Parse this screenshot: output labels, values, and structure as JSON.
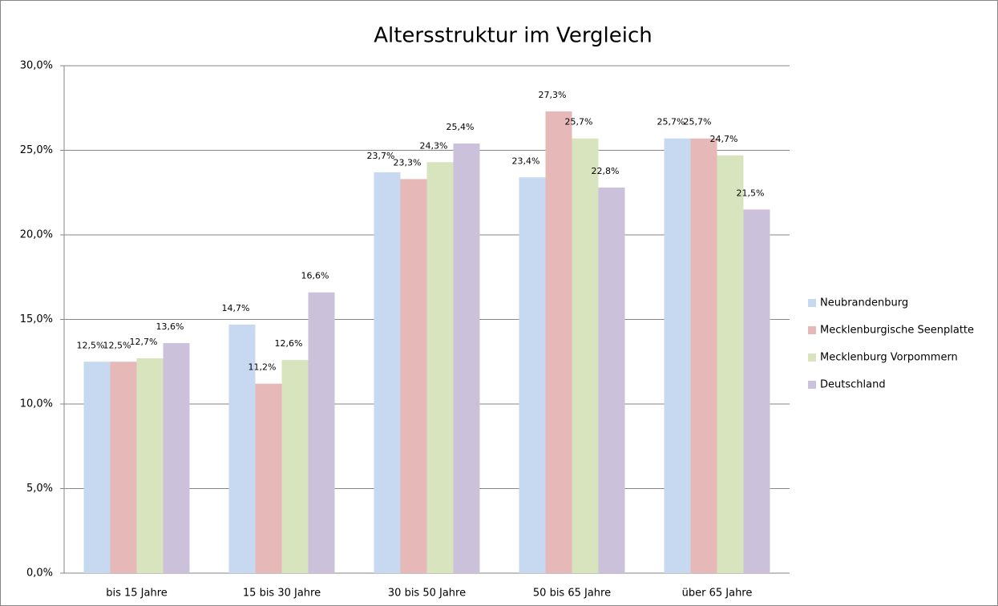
{
  "chart_data": {
    "type": "bar",
    "title": "Altersstruktur im Vergleich",
    "categories": [
      "bis 15 Jahre",
      "15 bis 30 Jahre",
      "30 bis 50 Jahre",
      "50 bis 65 Jahre",
      "über 65 Jahre"
    ],
    "series": [
      {
        "name": "Neubrandenburg",
        "color": "#c6d9f1",
        "values": [
          12.5,
          14.7,
          23.7,
          23.4,
          25.7
        ],
        "value_labels": [
          "12,5%",
          "14,7%",
          "23,7%",
          "23,4%",
          "25,7%"
        ]
      },
      {
        "name": "Mecklenburgische Seenplatte",
        "color": "#e6b9b8",
        "values": [
          12.5,
          11.2,
          23.3,
          27.3,
          25.7
        ],
        "value_labels": [
          "12,5%",
          "11,2%",
          "23,3%",
          "27,3%",
          "25,7%"
        ]
      },
      {
        "name": "Mecklenburg Vorpommern",
        "color": "#d7e4bd",
        "values": [
          12.7,
          12.6,
          24.3,
          25.7,
          24.7
        ],
        "value_labels": [
          "12,7%",
          "12,6%",
          "24,3%",
          "25,7%",
          "24,7%"
        ]
      },
      {
        "name": "Deutschland",
        "color": "#ccc1da",
        "values": [
          13.6,
          16.6,
          25.4,
          22.8,
          21.5
        ],
        "value_labels": [
          "13,6%",
          "16,6%",
          "25,4%",
          "22,8%",
          "21,5%"
        ]
      }
    ],
    "ylim": [
      0,
      30
    ],
    "yticks": [
      {
        "value": 0,
        "label": "0,0%"
      },
      {
        "value": 5,
        "label": "5,0%"
      },
      {
        "value": 10,
        "label": "10,0%"
      },
      {
        "value": 15,
        "label": "15,0%"
      },
      {
        "value": 20,
        "label": "20,0%"
      },
      {
        "value": 25,
        "label": "25,0%"
      },
      {
        "value": 30,
        "label": "30,0%"
      }
    ],
    "grid": true,
    "legend": "right"
  }
}
